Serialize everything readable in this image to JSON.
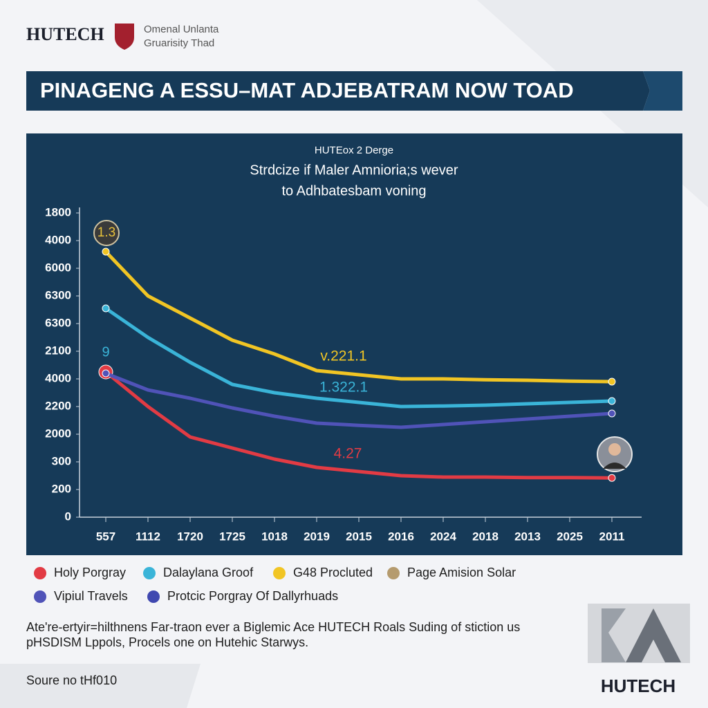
{
  "header": {
    "logo": "HUTECH",
    "org_line1": "Omenal Unlanta",
    "org_line2": "Gruarisity Thad"
  },
  "banner": {
    "title": "PINAGENG A ESSU–MAT ADJEBATRAM NOW TOAD"
  },
  "chart_data": {
    "type": "line",
    "title": "HUTEox 2 Derge",
    "subtitle": [
      "Strdcize if Maler Amnioria;s wever",
      "to Adhbatesbam voning"
    ],
    "categories": [
      "557",
      "1112",
      "1720",
      "1725",
      "1018",
      "2019",
      "2015",
      "2016",
      "2024",
      "2018",
      "2013",
      "2025",
      "2011"
    ],
    "ylim": [
      0,
      11
    ],
    "yticks": [
      {
        "value": 0,
        "label": "0"
      },
      {
        "value": 1,
        "label": "200"
      },
      {
        "value": 2,
        "label": "300"
      },
      {
        "value": 3,
        "label": "2000"
      },
      {
        "value": 4,
        "label": "2200"
      },
      {
        "value": 5,
        "label": "4000"
      },
      {
        "value": 6,
        "label": "2100"
      },
      {
        "value": 7,
        "label": "6300"
      },
      {
        "value": 8,
        "label": "6300"
      },
      {
        "value": 9,
        "label": "6000"
      },
      {
        "value": 10,
        "label": "4000"
      },
      {
        "value": 11,
        "label": "1800"
      }
    ],
    "series": [
      {
        "name": "Holy Porgray",
        "color": "#e23b44",
        "values": [
          5.25,
          4.0,
          2.9,
          2.5,
          2.1,
          1.8,
          1.65,
          1.5,
          1.45,
          1.45,
          1.43,
          1.43,
          1.42
        ]
      },
      {
        "name": "Dalaylana Groof",
        "color": "#3ab4d8",
        "values": [
          7.55,
          6.5,
          5.6,
          4.8,
          4.5,
          4.3,
          4.15,
          4.0,
          4.02,
          4.05,
          4.1,
          4.15,
          4.2
        ]
      },
      {
        "name": "G48 Procluted",
        "color": "#f1c524",
        "values": [
          9.6,
          8.0,
          7.2,
          6.4,
          5.9,
          5.3,
          5.15,
          5.0,
          5.0,
          4.97,
          4.95,
          4.92,
          4.9
        ]
      },
      {
        "name": "Page Amision Solar",
        "color": "#b59b6e",
        "values": [
          null,
          null,
          null,
          null,
          null,
          null,
          null,
          null,
          null,
          null,
          null,
          null,
          null
        ]
      },
      {
        "name": "Vipiul Travels",
        "color": "#5053b8",
        "values": [
          5.2,
          4.6,
          4.3,
          3.95,
          3.65,
          3.4,
          3.32,
          3.25,
          3.35,
          3.45,
          3.55,
          3.65,
          3.75
        ]
      },
      {
        "name": "Protcic Porgray Of Dallyrhuads",
        "color": "#3f48b0",
        "values": [
          null,
          null,
          null,
          null,
          null,
          null,
          null,
          null,
          null,
          null,
          null,
          null,
          null
        ]
      }
    ],
    "annotations": [
      "1.3",
      "9",
      "v.221.1",
      "1.322.1",
      "4.27"
    ]
  },
  "footnote": [
    "Ate're-ertyir=hilthnens Far-traon ever a Biglemic Ace HUTECH Roals Suding of stiction us",
    "pHSDISM Lppols, Procels one on Hutehic Starwys."
  ],
  "source": "Soure no tHf010",
  "footer_logo": "HUTECH"
}
